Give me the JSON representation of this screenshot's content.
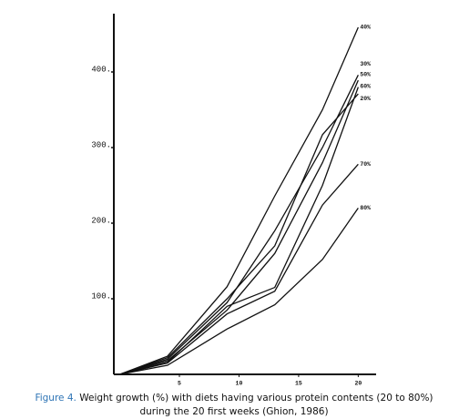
{
  "chart_data": {
    "type": "line",
    "x": [
      0,
      4,
      9,
      13,
      17,
      20
    ],
    "series": [
      {
        "name": "40%",
        "color": "#111",
        "values": [
          0,
          24,
          116,
          236,
          350,
          459
        ]
      },
      {
        "name": "30%",
        "color": "#111",
        "values": [
          0,
          20,
          95,
          190,
          300,
          396
        ]
      },
      {
        "name": "50%",
        "color": "#111",
        "values": [
          0,
          18,
          85,
          160,
          280,
          389
        ]
      },
      {
        "name": "60%",
        "color": "#111",
        "values": [
          0,
          16,
          90,
          115,
          250,
          380
        ]
      },
      {
        "name": "20%",
        "color": "#111",
        "values": [
          0,
          22,
          100,
          170,
          317,
          371
        ]
      },
      {
        "name": "70%",
        "color": "#111",
        "values": [
          0,
          15,
          80,
          110,
          224,
          278
        ]
      },
      {
        "name": "80%",
        "color": "#111",
        "values": [
          0,
          12,
          60,
          92,
          152,
          220
        ]
      }
    ],
    "xlim": [
      -0.5,
      21.5
    ],
    "xticks": [
      5,
      10,
      15,
      20
    ],
    "ylim": [
      0,
      480
    ],
    "yticks": [
      {
        "value": 100,
        "label": "100."
      },
      {
        "value": 200,
        "label": "200."
      },
      {
        "value": 300,
        "label": "300."
      },
      {
        "value": 400,
        "label": "400."
      }
    ],
    "caption_label": "Figure 4.",
    "caption": [
      "Weight growth (%) with diets having various protein contents (20 to 80%)",
      "during the 20 first weeks (Ghion, 1986)"
    ],
    "caption_color": "#2e74b5"
  }
}
